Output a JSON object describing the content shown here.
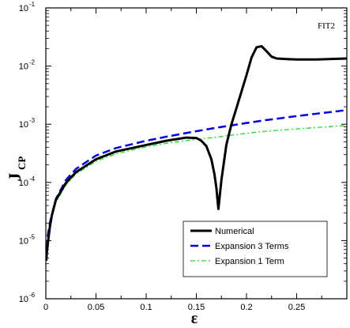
{
  "chart_data": {
    "type": "line",
    "annotation": "FIT2",
    "xlabel": "ε",
    "ylabel_main": "J",
    "ylabel_sub": "CP",
    "xlim": [
      0,
      0.3
    ],
    "ylim": [
      1e-06,
      0.1
    ],
    "y_scale": "log",
    "grid": false,
    "legend_position": "bottom-right",
    "x_ticks": [
      0,
      0.05,
      0.1,
      0.15,
      0.2,
      0.25
    ],
    "x_tick_labels": [
      "0",
      "0.05",
      "0.1",
      "0.15",
      "0.2",
      "0.25"
    ],
    "y_ticks": [
      1e-06,
      1e-05,
      0.0001,
      0.001,
      0.01,
      0.1
    ],
    "y_tick_labels": [
      {
        "base": "10",
        "exp": "-6"
      },
      {
        "base": "10",
        "exp": "-5"
      },
      {
        "base": "10",
        "exp": "-4"
      },
      {
        "base": "10",
        "exp": "-3"
      },
      {
        "base": "10",
        "exp": "-2"
      },
      {
        "base": "10",
        "exp": "-1"
      }
    ],
    "series": [
      {
        "name": "Numerical",
        "color": "#000000",
        "style": "solid",
        "x": [
          0.0005,
          0.001,
          0.002,
          0.004,
          0.006,
          0.01,
          0.02,
          0.03,
          0.05,
          0.07,
          0.1,
          0.12,
          0.14,
          0.15,
          0.155,
          0.16,
          0.165,
          0.168,
          0.17,
          0.172,
          0.175,
          0.18,
          0.185,
          0.19,
          0.2,
          0.205,
          0.21,
          0.215,
          0.22,
          0.225,
          0.23,
          0.24,
          0.25,
          0.27,
          0.3
        ],
        "y": [
          4.5e-06,
          6.3e-06,
          9e-06,
          1.7e-05,
          2.7e-05,
          5e-05,
          9.8e-05,
          0.00015,
          0.00025,
          0.00034,
          0.00044,
          0.00052,
          0.00059,
          0.00058,
          0.00052,
          0.00042,
          0.00025,
          0.00014,
          8e-05,
          3.5e-05,
          0.00011,
          0.00045,
          0.001,
          0.0019,
          0.007,
          0.014,
          0.021,
          0.022,
          0.018,
          0.0145,
          0.0135,
          0.0132,
          0.013,
          0.013,
          0.0135
        ]
      },
      {
        "name": "Expansion 3 Terms",
        "color": "#0000dd",
        "style": "dashed",
        "x": [
          0.0005,
          0.001,
          0.002,
          0.004,
          0.006,
          0.01,
          0.02,
          0.03,
          0.05,
          0.07,
          0.1,
          0.12,
          0.15,
          0.17,
          0.2,
          0.22,
          0.25,
          0.27,
          0.3
        ],
        "y": [
          4.5e-06,
          6.5e-06,
          1.25e-05,
          2e-05,
          2.8e-05,
          5.2e-05,
          0.00011,
          0.00017,
          0.00029,
          0.00039,
          0.00052,
          0.00061,
          0.00076,
          0.00087,
          0.00105,
          0.00118,
          0.00138,
          0.00152,
          0.00175
        ]
      },
      {
        "name": "Expansion 1 Term",
        "color": "#22dd22",
        "style": "dashdot",
        "x": [
          0.0005,
          0.001,
          0.002,
          0.004,
          0.006,
          0.01,
          0.02,
          0.03,
          0.05,
          0.07,
          0.1,
          0.12,
          0.15,
          0.17,
          0.2,
          0.22,
          0.25,
          0.27,
          0.3
        ],
        "y": [
          4.5e-06,
          6.5e-06,
          1.1e-05,
          1.8e-05,
          2.6e-05,
          4.5e-05,
          9e-05,
          0.00014,
          0.00023,
          0.00031,
          0.00041,
          0.00047,
          0.00055,
          0.0006,
          0.0007,
          0.00076,
          0.00083,
          0.00088,
          0.00095
        ]
      }
    ]
  }
}
